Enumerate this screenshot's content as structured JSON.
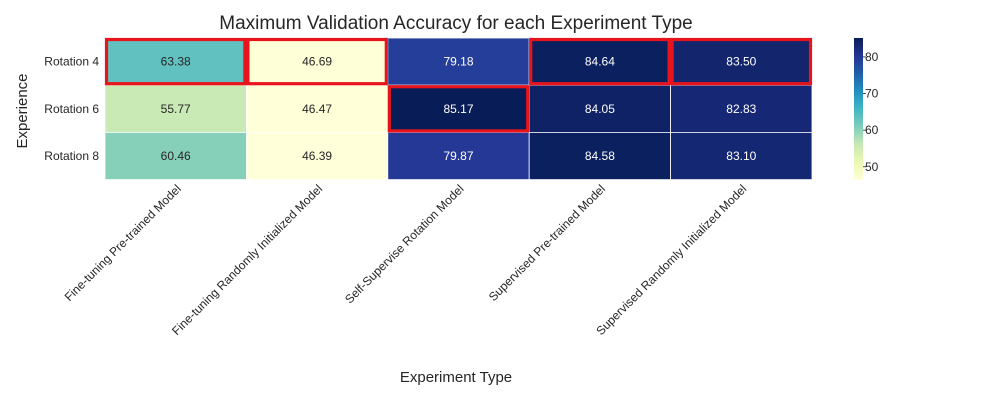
{
  "chart_data": {
    "type": "heatmap",
    "title": "Maximum Validation Accuracy for each Experiment Type",
    "xlabel": "Experiment Type",
    "ylabel": "Experience",
    "x_categories": [
      "Fine-tuning Pre-trained Model",
      "Fine-tuning Randomly Initialized Model",
      "Self-Supervise Rotation Model",
      "Supervised Pre-trained Model",
      "Supervised Randomly Initialized Model"
    ],
    "y_categories": [
      "Rotation 4",
      "Rotation 6",
      "Rotation 8"
    ],
    "values": [
      [
        63.38,
        46.69,
        79.18,
        84.64,
        83.5
      ],
      [
        55.77,
        46.47,
        85.17,
        84.05,
        82.83
      ],
      [
        60.46,
        46.39,
        79.87,
        84.58,
        83.1
      ]
    ],
    "value_labels": [
      [
        "63.38",
        "46.69",
        "79.18",
        "84.64",
        "83.50"
      ],
      [
        "55.77",
        "46.47",
        "85.17",
        "84.05",
        "82.83"
      ],
      [
        "60.46",
        "46.39",
        "79.87",
        "84.58",
        "83.10"
      ]
    ],
    "colormap": "YlGnBu",
    "colorbar_ticks": [
      50,
      60,
      70,
      80
    ],
    "colorbar_tick_labels": [
      "50",
      "60",
      "70",
      "80"
    ],
    "color_range": [
      46.39,
      85.17
    ],
    "highlight_color": "#e8141c",
    "highlighted_cells": [
      [
        0,
        0
      ],
      [
        0,
        1
      ],
      [
        0,
        3
      ],
      [
        0,
        4
      ],
      [
        1,
        2
      ]
    ],
    "grid": false
  }
}
